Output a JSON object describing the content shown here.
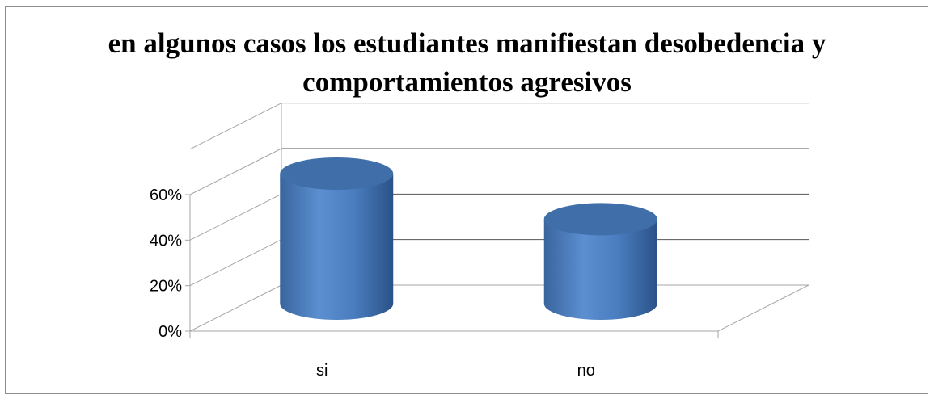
{
  "chart_data": {
    "type": "bar",
    "title": "en algunos casos los estudiantes manifiestan desobedencia y comportamientos agresivos",
    "categories": [
      "si",
      "no"
    ],
    "values": [
      60,
      40
    ],
    "ylim": [
      0,
      60
    ],
    "yticks": [
      "0%",
      "20%",
      "40%",
      "60%"
    ],
    "grid": true,
    "style": "3d-cylinder",
    "colors": {
      "bar": "#4f81bd",
      "bar_dark": "#2b5288",
      "bar_top": "#3f6ea8",
      "grid": "#a6a6a6"
    }
  }
}
